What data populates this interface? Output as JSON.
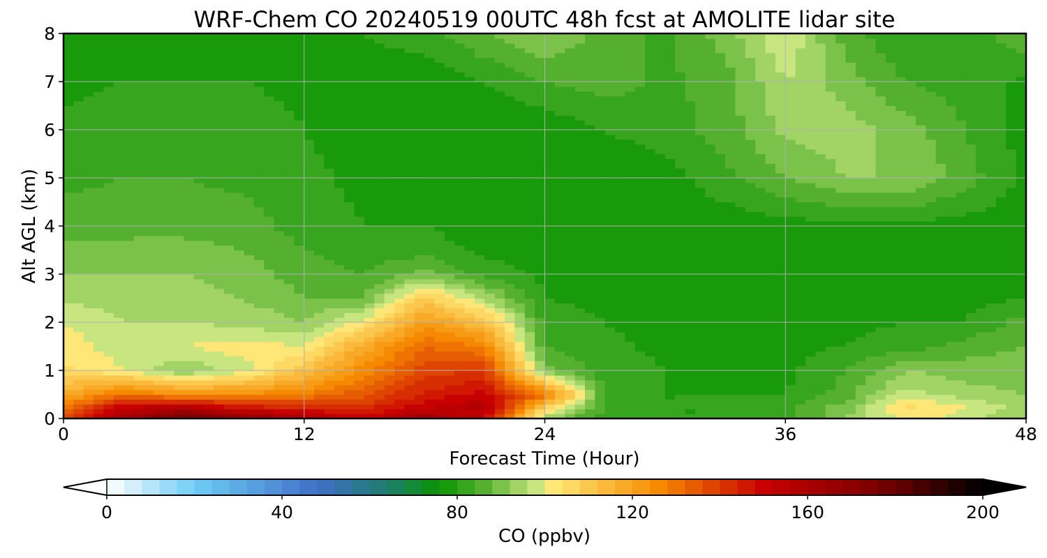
{
  "chart_data": {
    "type": "heatmap",
    "title": "WRF-Chem CO  20240519 00UTC 48h fcst at AMOLITE lidar site",
    "xlabel": "Forecast Time (Hour)",
    "ylabel": "Alt AGL (km)",
    "xlim": [
      0,
      48
    ],
    "ylim": [
      0,
      8
    ],
    "x_ticks": [
      0,
      12,
      24,
      36,
      48
    ],
    "y_ticks": [
      0,
      1,
      2,
      3,
      4,
      5,
      6,
      7,
      8
    ],
    "grid": true,
    "colorbar": {
      "label": "CO  (ppbv)",
      "range": [
        0,
        200
      ],
      "step": 4,
      "ticks": [
        0,
        40,
        80,
        120,
        160,
        200
      ],
      "extend": "both",
      "orientation": "horizontal",
      "colors": {
        "min": "#ffffff",
        "sky": "#6ecdf5",
        "blue": "#3f6fc8",
        "teal": "#1e7d6e",
        "green_dark": "#0a9400",
        "green": "#55b030",
        "green_light": "#c7e680",
        "yellow": "#ffef80",
        "orange": "#f58a00",
        "red": "#c80000",
        "dark_red": "#7a0000",
        "max": "#000000"
      }
    },
    "hours": [
      0,
      3,
      6,
      9,
      12,
      15,
      18,
      21,
      24,
      27,
      30,
      33,
      36,
      39,
      42,
      45,
      48
    ],
    "altitudes_km": [
      0,
      0.25,
      0.5,
      1,
      1.5,
      2,
      2.5,
      3,
      3.5,
      4,
      5,
      6,
      7,
      8
    ],
    "co_ppbv": [
      [
        140,
        162,
        180,
        168,
        160,
        150,
        165,
        150,
        92,
        82,
        80,
        80,
        82,
        92,
        102,
        98,
        92
      ],
      [
        128,
        150,
        156,
        145,
        142,
        142,
        150,
        158,
        110,
        83,
        80,
        80,
        82,
        90,
        105,
        100,
        94
      ],
      [
        118,
        130,
        125,
        125,
        128,
        135,
        145,
        150,
        130,
        83,
        80,
        80,
        80,
        86,
        98,
        94,
        92
      ],
      [
        105,
        100,
        92,
        98,
        112,
        126,
        138,
        140,
        90,
        82,
        80,
        79,
        79,
        84,
        92,
        90,
        90
      ],
      [
        102,
        98,
        100,
        102,
        100,
        118,
        132,
        128,
        84,
        81,
        79,
        78,
        79,
        80,
        82,
        86,
        88
      ],
      [
        100,
        96,
        96,
        95,
        92,
        102,
        122,
        112,
        82,
        80,
        78,
        78,
        78,
        79,
        80,
        80,
        86
      ],
      [
        95,
        94,
        94,
        92,
        88,
        88,
        110,
        95,
        80,
        79,
        78,
        77,
        77,
        78,
        78,
        79,
        80
      ],
      [
        92,
        92,
        92,
        90,
        86,
        84,
        90,
        82,
        79,
        78,
        77,
        77,
        77,
        77,
        77,
        78,
        78
      ],
      [
        89,
        90,
        90,
        88,
        84,
        82,
        82,
        79,
        78,
        77,
        77,
        77,
        77,
        77,
        77,
        77,
        77
      ],
      [
        86,
        86,
        86,
        86,
        82,
        80,
        80,
        78,
        77,
        77,
        77,
        77,
        78,
        79,
        79,
        78,
        77
      ],
      [
        83,
        84,
        84,
        83,
        81,
        79,
        77,
        76,
        76,
        77,
        78,
        83,
        88,
        92,
        92,
        86,
        79
      ],
      [
        81,
        82,
        83,
        82,
        80,
        78,
        76,
        76,
        77,
        80,
        82,
        86,
        93,
        94,
        90,
        84,
        78
      ],
      [
        79,
        80,
        80,
        80,
        79,
        78,
        77,
        80,
        84,
        86,
        83,
        86,
        96,
        90,
        84,
        82,
        79
      ],
      [
        78,
        78,
        77,
        79,
        80,
        80,
        82,
        88,
        92,
        86,
        83,
        90,
        100,
        86,
        80,
        80,
        88
      ]
    ]
  }
}
